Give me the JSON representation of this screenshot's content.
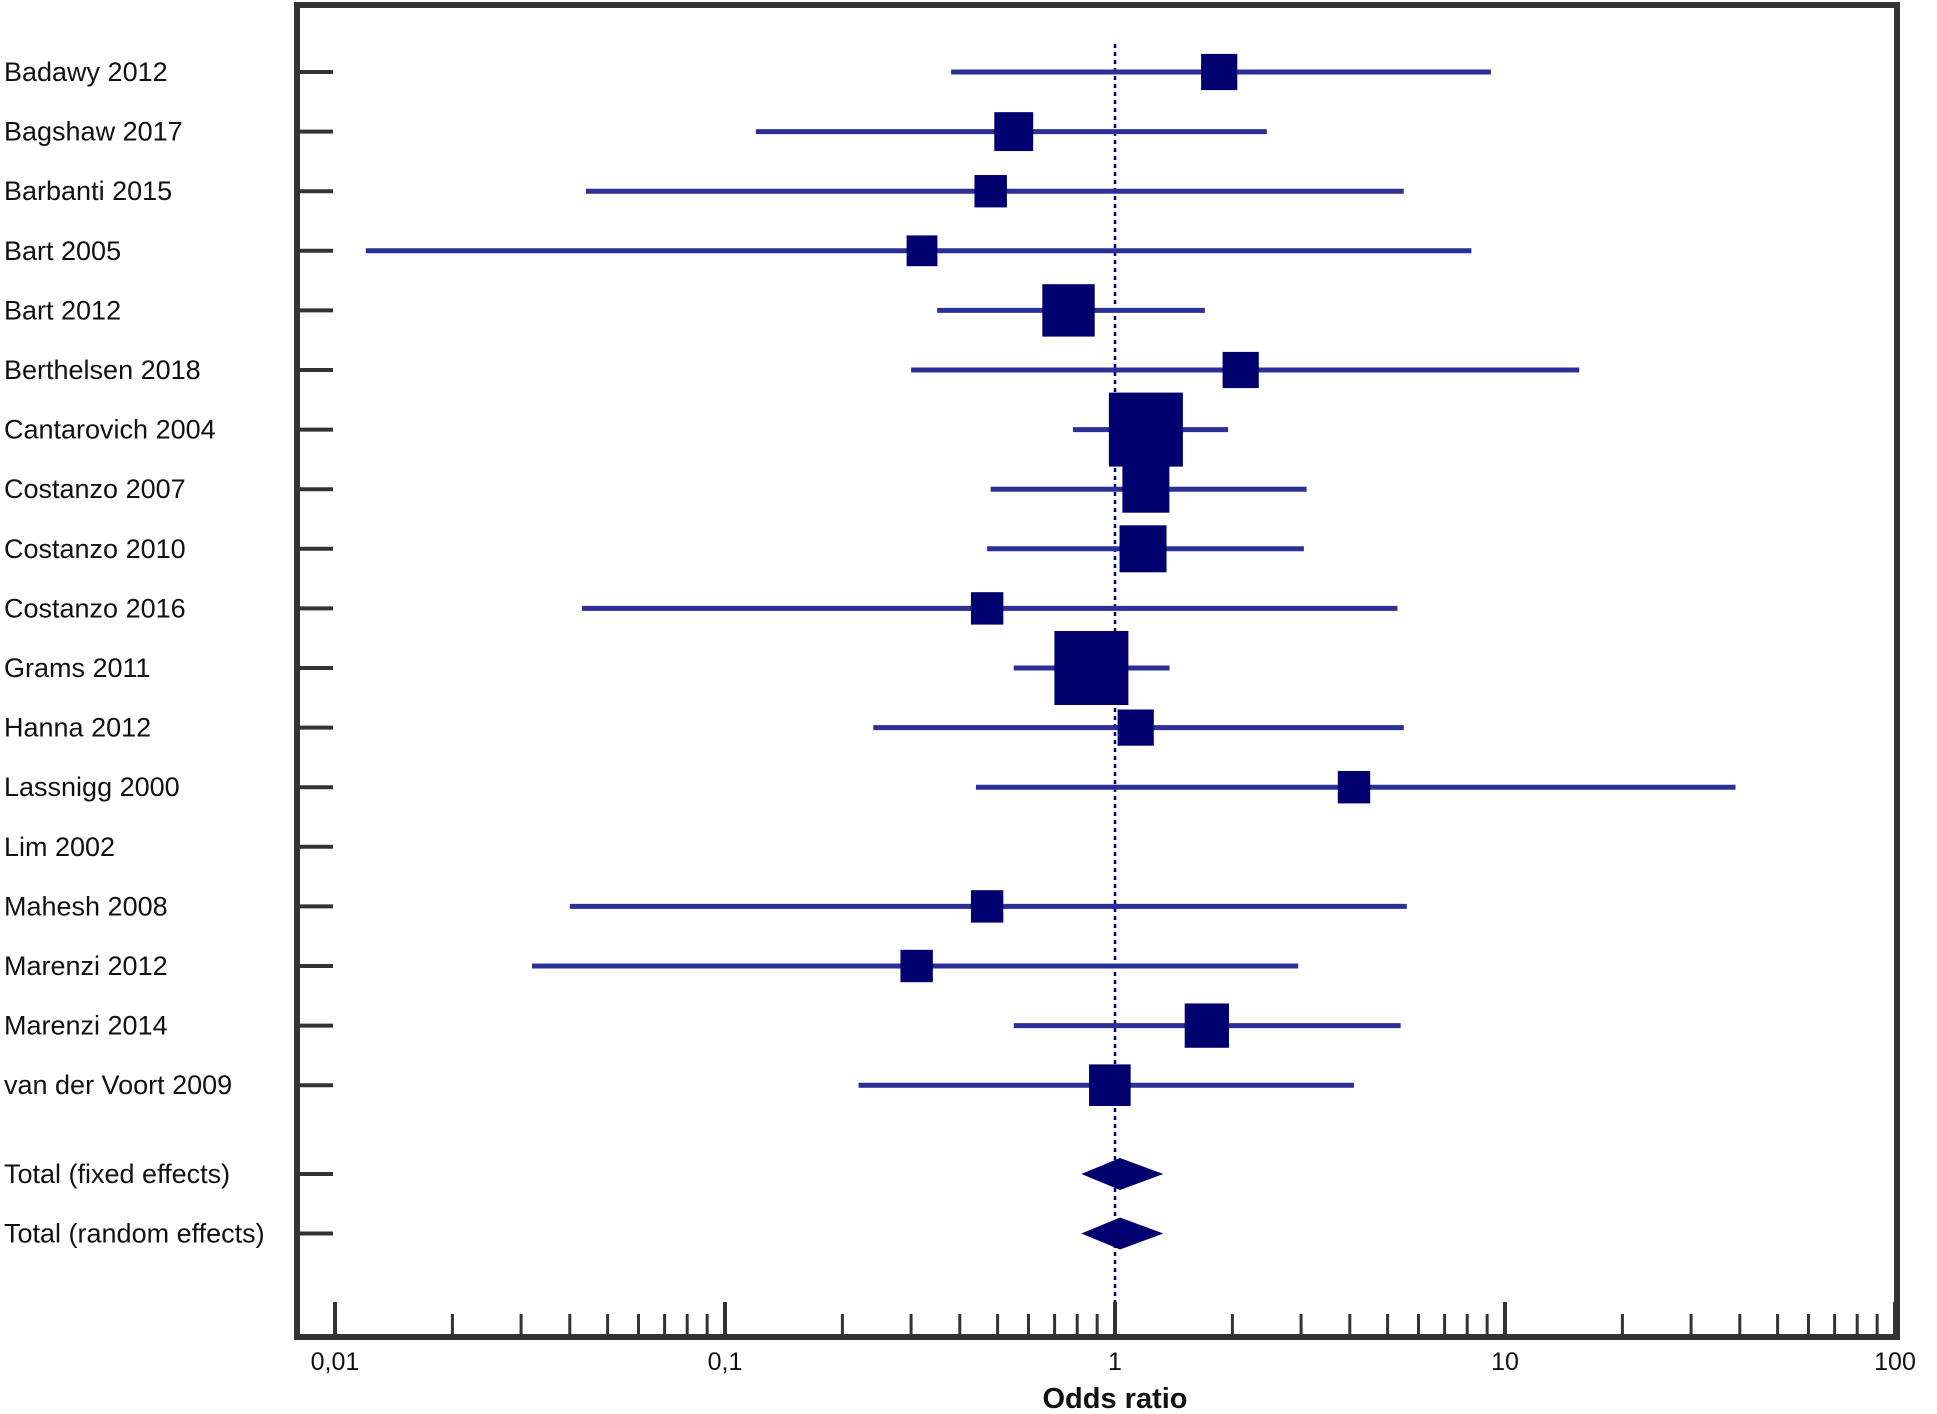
{
  "chart_data": {
    "type": "forest",
    "xlabel": "Odds ratio",
    "xscale": "log",
    "xlim": [
      0.01,
      100
    ],
    "x_ticks": [
      0.01,
      0.1,
      1,
      10,
      100
    ],
    "x_tick_labels": [
      "0,01",
      "0,1",
      "1",
      "10",
      "100"
    ],
    "reference_line": 1,
    "colors": {
      "ci": "#2b2f96",
      "marker": "#00006e",
      "frame": "#333333"
    },
    "studies": [
      {
        "label": "Badawy 2012",
        "or": 1.85,
        "lower": 0.38,
        "upper": 9.2,
        "weight": 3
      },
      {
        "label": "Bagshaw 2017",
        "or": 0.55,
        "lower": 0.12,
        "upper": 2.45,
        "weight": 3.5
      },
      {
        "label": "Barbanti 2015",
        "or": 0.48,
        "lower": 0.044,
        "upper": 5.5,
        "weight": 2.3
      },
      {
        "label": "Bart 2005",
        "or": 0.32,
        "lower": 0.012,
        "upper": 8.2,
        "weight": 2
      },
      {
        "label": "Bart 2012",
        "or": 0.76,
        "lower": 0.35,
        "upper": 1.7,
        "weight": 6
      },
      {
        "label": "Berthelsen 2018",
        "or": 2.1,
        "lower": 0.3,
        "upper": 15.5,
        "weight": 3
      },
      {
        "label": "Cantarovich 2004",
        "or": 1.2,
        "lower": 0.78,
        "upper": 1.95,
        "weight": 10
      },
      {
        "label": "Costanzo 2007",
        "or": 1.2,
        "lower": 0.48,
        "upper": 3.1,
        "weight": 5
      },
      {
        "label": "Costanzo 2010",
        "or": 1.18,
        "lower": 0.47,
        "upper": 3.05,
        "weight": 5
      },
      {
        "label": "Costanzo 2016",
        "or": 0.47,
        "lower": 0.043,
        "upper": 5.3,
        "weight": 2.3
      },
      {
        "label": "Grams 2011",
        "or": 0.87,
        "lower": 0.55,
        "upper": 1.38,
        "weight": 10
      },
      {
        "label": "Hanna 2012",
        "or": 1.13,
        "lower": 0.24,
        "upper": 5.5,
        "weight": 3
      },
      {
        "label": "Lassnigg 2000",
        "or": 4.1,
        "lower": 0.44,
        "upper": 39,
        "weight": 2.3
      },
      {
        "label": "Lim 2002"
      },
      {
        "label": "Mahesh 2008",
        "or": 0.47,
        "lower": 0.04,
        "upper": 5.6,
        "weight": 2.3
      },
      {
        "label": "Marenzi 2012",
        "or": 0.31,
        "lower": 0.032,
        "upper": 2.95,
        "weight": 2.3
      },
      {
        "label": "Marenzi 2014",
        "or": 1.72,
        "lower": 0.55,
        "upper": 5.4,
        "weight": 4.5
      },
      {
        "label": "van der Voort 2009",
        "or": 0.97,
        "lower": 0.22,
        "upper": 4.1,
        "weight": 4
      }
    ],
    "totals": [
      {
        "label": "Total (fixed effects)",
        "or": 1.03,
        "lower": 0.82,
        "upper": 1.33
      },
      {
        "label": "Total (random effects)",
        "or": 1.03,
        "lower": 0.82,
        "upper": 1.33
      }
    ]
  }
}
